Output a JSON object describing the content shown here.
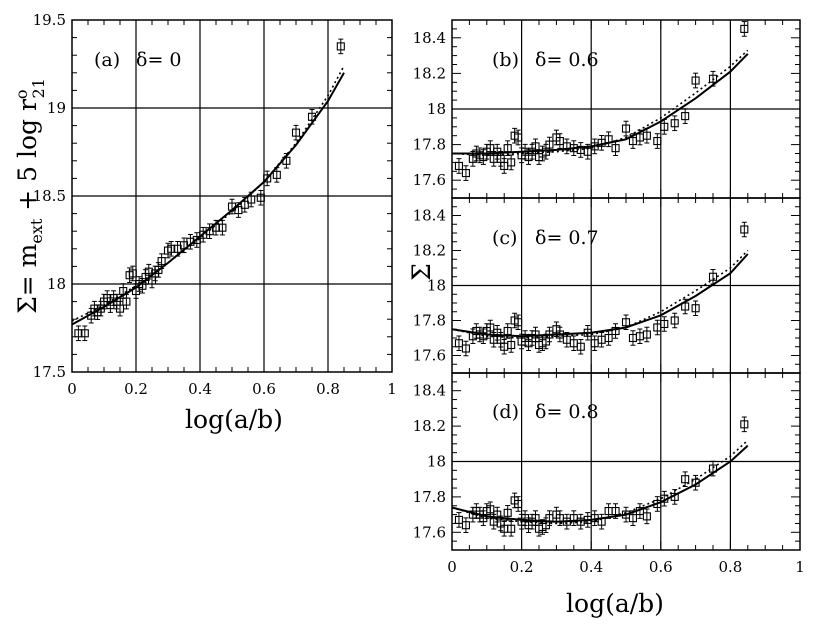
{
  "chart_data": [
    {
      "panel": "a",
      "type": "scatter",
      "label": "(a)",
      "delta_label": "δ= 0",
      "xlabel": "log(a/b)",
      "ylabel": "Σ= m_ext + 5 log r°21",
      "xlim": [
        0,
        1
      ],
      "ylim": [
        17.5,
        19.5
      ],
      "x_ticks": [
        "0",
        "0.2",
        "0.4",
        "0.6",
        "0.8",
        "1"
      ],
      "y_ticks": [
        "17.5",
        "18",
        "18.5",
        "19",
        "19.5"
      ],
      "grid": true,
      "points": {
        "x": [
          0.02,
          0.04,
          0.06,
          0.07,
          0.08,
          0.09,
          0.1,
          0.11,
          0.12,
          0.13,
          0.14,
          0.15,
          0.16,
          0.17,
          0.18,
          0.19,
          0.2,
          0.21,
          0.22,
          0.23,
          0.24,
          0.25,
          0.26,
          0.27,
          0.28,
          0.3,
          0.31,
          0.33,
          0.35,
          0.37,
          0.39,
          0.41,
          0.43,
          0.45,
          0.47,
          0.5,
          0.52,
          0.54,
          0.56,
          0.59,
          0.61,
          0.64,
          0.67,
          0.7,
          0.75,
          0.84
        ],
        "y": [
          17.72,
          17.72,
          17.82,
          17.86,
          17.84,
          17.86,
          17.9,
          17.92,
          17.88,
          17.92,
          17.9,
          17.86,
          17.96,
          17.9,
          18.05,
          18.06,
          17.96,
          18.0,
          17.99,
          18.04,
          18.07,
          18.02,
          18.06,
          18.08,
          18.13,
          18.19,
          18.2,
          18.2,
          18.22,
          18.24,
          18.25,
          18.28,
          18.3,
          18.32,
          18.32,
          18.44,
          18.42,
          18.45,
          18.48,
          18.49,
          18.6,
          18.62,
          18.7,
          18.86,
          18.95,
          19.35
        ],
        "yerr": 0.03
      },
      "fit_solid": {
        "x": [
          0,
          0.1,
          0.2,
          0.3,
          0.4,
          0.5,
          0.6,
          0.7,
          0.8,
          0.85
        ],
        "y": [
          17.77,
          17.87,
          17.98,
          18.12,
          18.27,
          18.42,
          18.58,
          18.79,
          19.04,
          19.2
        ]
      },
      "fit_dotted": {
        "x": [
          0,
          0.1,
          0.2,
          0.3,
          0.4,
          0.5,
          0.6,
          0.7,
          0.8,
          0.85
        ],
        "y": [
          17.79,
          17.88,
          17.99,
          18.12,
          18.26,
          18.41,
          18.58,
          18.8,
          19.07,
          19.24
        ]
      }
    },
    {
      "panel": "b",
      "type": "scatter",
      "label": "(b)",
      "delta_label": "δ= 0.6",
      "xlim": [
        0,
        1
      ],
      "ylim": [
        17.5,
        18.5
      ],
      "y_ticks": [
        "17.6",
        "17.8",
        "18",
        "18.2",
        "18.4"
      ],
      "grid": true,
      "points": {
        "x": [
          0.02,
          0.04,
          0.06,
          0.07,
          0.08,
          0.09,
          0.1,
          0.11,
          0.12,
          0.13,
          0.14,
          0.15,
          0.16,
          0.17,
          0.18,
          0.19,
          0.2,
          0.21,
          0.22,
          0.23,
          0.24,
          0.25,
          0.26,
          0.27,
          0.28,
          0.3,
          0.31,
          0.33,
          0.35,
          0.37,
          0.39,
          0.41,
          0.43,
          0.45,
          0.47,
          0.5,
          0.52,
          0.54,
          0.56,
          0.59,
          0.61,
          0.64,
          0.67,
          0.7,
          0.75,
          0.84
        ],
        "y": [
          17.68,
          17.64,
          17.72,
          17.75,
          17.74,
          17.73,
          17.76,
          17.78,
          17.72,
          17.76,
          17.72,
          17.68,
          17.78,
          17.7,
          17.85,
          17.84,
          17.74,
          17.76,
          17.73,
          17.76,
          17.79,
          17.73,
          17.75,
          17.76,
          17.8,
          17.84,
          17.82,
          17.79,
          17.78,
          17.77,
          17.76,
          17.79,
          17.81,
          17.83,
          17.78,
          17.89,
          17.82,
          17.84,
          17.85,
          17.82,
          17.9,
          17.92,
          17.96,
          18.16,
          18.17,
          18.45
        ],
        "yerr": 0.03
      },
      "fit_solid": {
        "x": [
          0,
          0.1,
          0.2,
          0.3,
          0.4,
          0.5,
          0.6,
          0.7,
          0.8,
          0.85
        ],
        "y": [
          17.75,
          17.75,
          17.76,
          17.77,
          17.79,
          17.83,
          17.93,
          18.06,
          18.21,
          18.31
        ]
      },
      "fit_dotted": {
        "x": [
          0,
          0.1,
          0.2,
          0.3,
          0.4,
          0.5,
          0.6,
          0.7,
          0.8,
          0.85
        ],
        "y": [
          17.75,
          17.74,
          17.75,
          17.76,
          17.78,
          17.84,
          17.95,
          18.09,
          18.24,
          18.33
        ]
      }
    },
    {
      "panel": "c",
      "type": "scatter",
      "label": "(c)",
      "delta_label": "δ= 0.7",
      "ylabel": "Σ",
      "xlim": [
        0,
        1
      ],
      "ylim": [
        17.5,
        18.5
      ],
      "y_ticks": [
        "17.6",
        "17.8",
        "18",
        "18.2",
        "18.4"
      ],
      "grid": true,
      "points": {
        "x": [
          0.02,
          0.04,
          0.06,
          0.07,
          0.08,
          0.09,
          0.1,
          0.11,
          0.12,
          0.13,
          0.14,
          0.15,
          0.16,
          0.17,
          0.18,
          0.19,
          0.2,
          0.21,
          0.22,
          0.23,
          0.24,
          0.25,
          0.26,
          0.27,
          0.28,
          0.3,
          0.31,
          0.33,
          0.35,
          0.37,
          0.39,
          0.41,
          0.43,
          0.45,
          0.47,
          0.5,
          0.52,
          0.54,
          0.56,
          0.59,
          0.61,
          0.64,
          0.67,
          0.7,
          0.75,
          0.84
        ],
        "y": [
          17.67,
          17.64,
          17.71,
          17.74,
          17.72,
          17.71,
          17.74,
          17.76,
          17.69,
          17.73,
          17.69,
          17.65,
          17.74,
          17.66,
          17.8,
          17.79,
          17.68,
          17.7,
          17.67,
          17.7,
          17.72,
          17.66,
          17.67,
          17.68,
          17.72,
          17.75,
          17.72,
          17.69,
          17.67,
          17.65,
          17.73,
          17.67,
          17.69,
          17.7,
          17.74,
          17.79,
          17.7,
          17.71,
          17.72,
          17.76,
          17.78,
          17.8,
          17.88,
          17.87,
          18.05,
          18.32
        ],
        "yerr": 0.03
      },
      "fit_solid": {
        "x": [
          0,
          0.1,
          0.2,
          0.3,
          0.4,
          0.5,
          0.6,
          0.7,
          0.8,
          0.85
        ],
        "y": [
          17.75,
          17.72,
          17.71,
          17.72,
          17.73,
          17.76,
          17.83,
          17.94,
          18.07,
          18.18
        ]
      },
      "fit_dotted": {
        "x": [
          0,
          0.1,
          0.2,
          0.3,
          0.4,
          0.5,
          0.6,
          0.7,
          0.8,
          0.85
        ],
        "y": [
          17.75,
          17.71,
          17.7,
          17.71,
          17.72,
          17.76,
          17.85,
          17.97,
          18.1,
          18.2
        ]
      }
    },
    {
      "panel": "d",
      "type": "scatter",
      "label": "(d)",
      "delta_label": "δ= 0.8",
      "xlabel": "log(a/b)",
      "xlim": [
        0,
        1
      ],
      "ylim": [
        17.5,
        18.5
      ],
      "x_ticks": [
        "0",
        "0.2",
        "0.4",
        "0.6",
        "0.8",
        "1"
      ],
      "y_ticks": [
        "17.6",
        "17.8",
        "18",
        "18.2",
        "18.4"
      ],
      "grid": true,
      "points": {
        "x": [
          0.02,
          0.04,
          0.06,
          0.07,
          0.08,
          0.09,
          0.1,
          0.11,
          0.12,
          0.13,
          0.14,
          0.15,
          0.16,
          0.17,
          0.18,
          0.19,
          0.2,
          0.21,
          0.22,
          0.23,
          0.24,
          0.25,
          0.26,
          0.27,
          0.28,
          0.3,
          0.31,
          0.33,
          0.35,
          0.37,
          0.39,
          0.41,
          0.43,
          0.45,
          0.47,
          0.5,
          0.52,
          0.54,
          0.56,
          0.59,
          0.61,
          0.64,
          0.67,
          0.7,
          0.75,
          0.84
        ],
        "y": [
          17.67,
          17.64,
          17.7,
          17.72,
          17.7,
          17.68,
          17.72,
          17.73,
          17.66,
          17.7,
          17.65,
          17.62,
          17.71,
          17.62,
          17.78,
          17.76,
          17.66,
          17.68,
          17.64,
          17.66,
          17.68,
          17.62,
          17.63,
          17.64,
          17.68,
          17.7,
          17.68,
          17.66,
          17.68,
          17.66,
          17.67,
          17.68,
          17.66,
          17.72,
          17.72,
          17.7,
          17.68,
          17.72,
          17.69,
          17.76,
          17.79,
          17.8,
          17.9,
          17.88,
          17.96,
          18.21
        ],
        "yerr": 0.03
      },
      "fit_solid": {
        "x": [
          0,
          0.1,
          0.2,
          0.3,
          0.4,
          0.5,
          0.6,
          0.7,
          0.8,
          0.85
        ],
        "y": [
          17.74,
          17.69,
          17.67,
          17.66,
          17.67,
          17.7,
          17.77,
          17.87,
          18.0,
          18.09
        ]
      },
      "fit_dotted": {
        "x": [
          0,
          0.1,
          0.2,
          0.3,
          0.4,
          0.5,
          0.6,
          0.7,
          0.8,
          0.85
        ],
        "y": [
          17.74,
          17.68,
          17.66,
          17.65,
          17.66,
          17.71,
          17.79,
          17.9,
          18.03,
          18.12
        ]
      }
    }
  ]
}
